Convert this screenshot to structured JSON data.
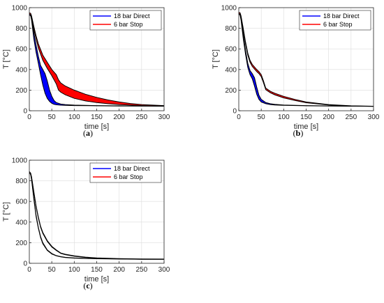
{
  "figure": {
    "panel_labels": [
      "(a)",
      "(b)",
      "(c)"
    ]
  },
  "colors": {
    "series_18bar_line": "#0000ff",
    "series_18bar_fill": "#0000ff",
    "series_6bar_line": "#ff0000",
    "series_6bar_fill": "#ff0000",
    "band_edge": "#000000",
    "grid": "#dcdcdc",
    "axis": "#262626"
  },
  "chart_data": [
    {
      "panel": "(a)",
      "type": "area",
      "xlabel": "time [s]",
      "ylabel": "T [°C]",
      "xlim": [
        0,
        300
      ],
      "ylim": [
        0,
        1000
      ],
      "xticks": [
        0,
        50,
        100,
        150,
        200,
        250,
        300
      ],
      "yticks": [
        0,
        200,
        400,
        600,
        800,
        1000
      ],
      "grid": true,
      "legend_position": "top-right",
      "series": [
        {
          "name": "18 bar Direct",
          "color": "#0000ff",
          "x": [
            0,
            3,
            5,
            10,
            15,
            20,
            25,
            30,
            35,
            40,
            45,
            50,
            55,
            60,
            70,
            80,
            100,
            150,
            200,
            250,
            300
          ],
          "upper": [
            950,
            940,
            900,
            760,
            640,
            530,
            440,
            400,
            360,
            290,
            200,
            140,
            100,
            80,
            65,
            60,
            55,
            50,
            48,
            46,
            45
          ],
          "lower": [
            930,
            920,
            880,
            700,
            570,
            460,
            350,
            250,
            170,
            120,
            90,
            72,
            62,
            58,
            54,
            52,
            50,
            48,
            46,
            45,
            44
          ]
        },
        {
          "name": "6 bar Stop",
          "color": "#ff0000",
          "x": [
            0,
            3,
            5,
            10,
            15,
            20,
            30,
            40,
            50,
            60,
            65,
            70,
            80,
            100,
            125,
            150,
            175,
            200,
            225,
            250,
            275,
            300
          ],
          "upper": [
            950,
            945,
            920,
            820,
            730,
            650,
            540,
            470,
            400,
            350,
            300,
            270,
            240,
            200,
            160,
            130,
            105,
            85,
            70,
            60,
            55,
            50
          ],
          "lower": [
            940,
            930,
            900,
            790,
            700,
            610,
            490,
            410,
            340,
            260,
            200,
            180,
            155,
            120,
            95,
            80,
            68,
            60,
            55,
            50,
            47,
            45
          ]
        }
      ]
    },
    {
      "panel": "(b)",
      "type": "area",
      "xlabel": "time [s]",
      "ylabel": "T [°C]",
      "xlim": [
        0,
        300
      ],
      "ylim": [
        0,
        1000
      ],
      "xticks": [
        0,
        50,
        100,
        150,
        200,
        250,
        300
      ],
      "yticks": [
        0,
        200,
        400,
        600,
        800,
        1000
      ],
      "grid": true,
      "legend_position": "top-right",
      "series": [
        {
          "name": "18 bar Direct",
          "color": "#0000ff",
          "x": [
            0,
            3,
            5,
            10,
            15,
            20,
            25,
            30,
            35,
            40,
            45,
            50,
            60,
            70,
            80,
            100,
            150,
            200,
            250,
            300
          ],
          "upper": [
            950,
            940,
            900,
            740,
            590,
            460,
            390,
            360,
            320,
            230,
            150,
            110,
            80,
            68,
            62,
            56,
            50,
            47,
            45,
            44
          ],
          "lower": [
            940,
            925,
            880,
            700,
            550,
            420,
            350,
            310,
            240,
            160,
            110,
            85,
            68,
            60,
            56,
            52,
            48,
            46,
            44,
            43
          ]
        },
        {
          "name": "6 bar Stop",
          "color": "#ff0000",
          "x": [
            0,
            3,
            5,
            10,
            15,
            20,
            25,
            30,
            40,
            45,
            50,
            55,
            60,
            70,
            80,
            100,
            125,
            150,
            200,
            250,
            300
          ],
          "upper": [
            955,
            950,
            920,
            800,
            670,
            560,
            490,
            450,
            400,
            380,
            350,
            290,
            220,
            190,
            170,
            140,
            110,
            85,
            60,
            48,
            44
          ],
          "lower": [
            945,
            935,
            905,
            780,
            650,
            540,
            470,
            430,
            380,
            360,
            330,
            270,
            205,
            175,
            155,
            125,
            100,
            78,
            56,
            46,
            42
          ]
        }
      ]
    },
    {
      "panel": "(c)",
      "type": "area",
      "xlabel": "time [s]",
      "ylabel": "T [°C]",
      "xlim": [
        0,
        300
      ],
      "ylim": [
        0,
        1000
      ],
      "xticks": [
        0,
        50,
        100,
        150,
        200,
        250,
        300
      ],
      "yticks": [
        0,
        200,
        400,
        600,
        800,
        1000
      ],
      "grid": true,
      "legend_position": "top-right",
      "series": [
        {
          "name": "18 bar Direct",
          "color": "#0000ff",
          "x": [
            0,
            3,
            5,
            10,
            15,
            20,
            25,
            30,
            40,
            50,
            60,
            70,
            80,
            100,
            150,
            200,
            250,
            300
          ],
          "upper": [
            890,
            870,
            820,
            640,
            470,
            350,
            260,
            200,
            130,
            95,
            75,
            65,
            58,
            52,
            45,
            42,
            40,
            40
          ],
          "lower": [
            880,
            860,
            810,
            625,
            455,
            340,
            250,
            190,
            125,
            90,
            72,
            62,
            56,
            50,
            44,
            41,
            39,
            39
          ]
        },
        {
          "name": "6 bar Stop",
          "color": "#ff0000",
          "x": [
            0,
            3,
            5,
            10,
            15,
            20,
            25,
            30,
            40,
            50,
            60,
            70,
            80,
            100,
            125,
            150,
            200,
            250,
            300
          ],
          "upper": [
            890,
            875,
            840,
            700,
            560,
            450,
            360,
            300,
            220,
            165,
            130,
            100,
            88,
            72,
            60,
            52,
            45,
            42,
            41
          ],
          "lower": [
            880,
            865,
            830,
            690,
            550,
            440,
            350,
            290,
            212,
            158,
            124,
            96,
            84,
            68,
            57,
            49,
            43,
            40,
            39
          ]
        }
      ]
    }
  ]
}
